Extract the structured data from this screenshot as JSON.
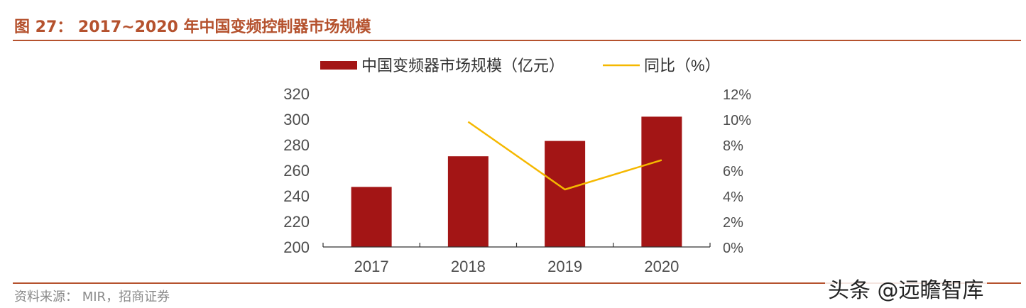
{
  "figure": {
    "title": "图 27：  2017~2020 年中国变频控制器市场规模",
    "source": "资料来源：  MIR，招商证券",
    "watermark": "头条 @远瞻智库"
  },
  "colors": {
    "bar": "#a31515",
    "line": "#f5b800",
    "title": "#b5522e",
    "axis_text": "#4d4d4d"
  },
  "chart_data": {
    "type": "bar",
    "categories": [
      "2017",
      "2018",
      "2019",
      "2020"
    ],
    "series": [
      {
        "name": "中国变频器市场规模（亿元）",
        "type": "bar",
        "axis": "left",
        "values": [
          247,
          271,
          283,
          302
        ]
      },
      {
        "name": "同比（%）",
        "type": "line",
        "axis": "right",
        "values": [
          null,
          9.8,
          4.5,
          6.8
        ]
      }
    ],
    "y_left": {
      "range": [
        200,
        320
      ],
      "ticks": [
        "200",
        "220",
        "240",
        "260",
        "280",
        "300",
        "320"
      ]
    },
    "y_right": {
      "range": [
        0,
        12
      ],
      "ticks": [
        "0%",
        "2%",
        "4%",
        "6%",
        "8%",
        "10%",
        "12%"
      ]
    },
    "legend": [
      "中国变频器市场规模（亿元）",
      "同比（%）"
    ],
    "legend_position": "top",
    "grid": false
  }
}
